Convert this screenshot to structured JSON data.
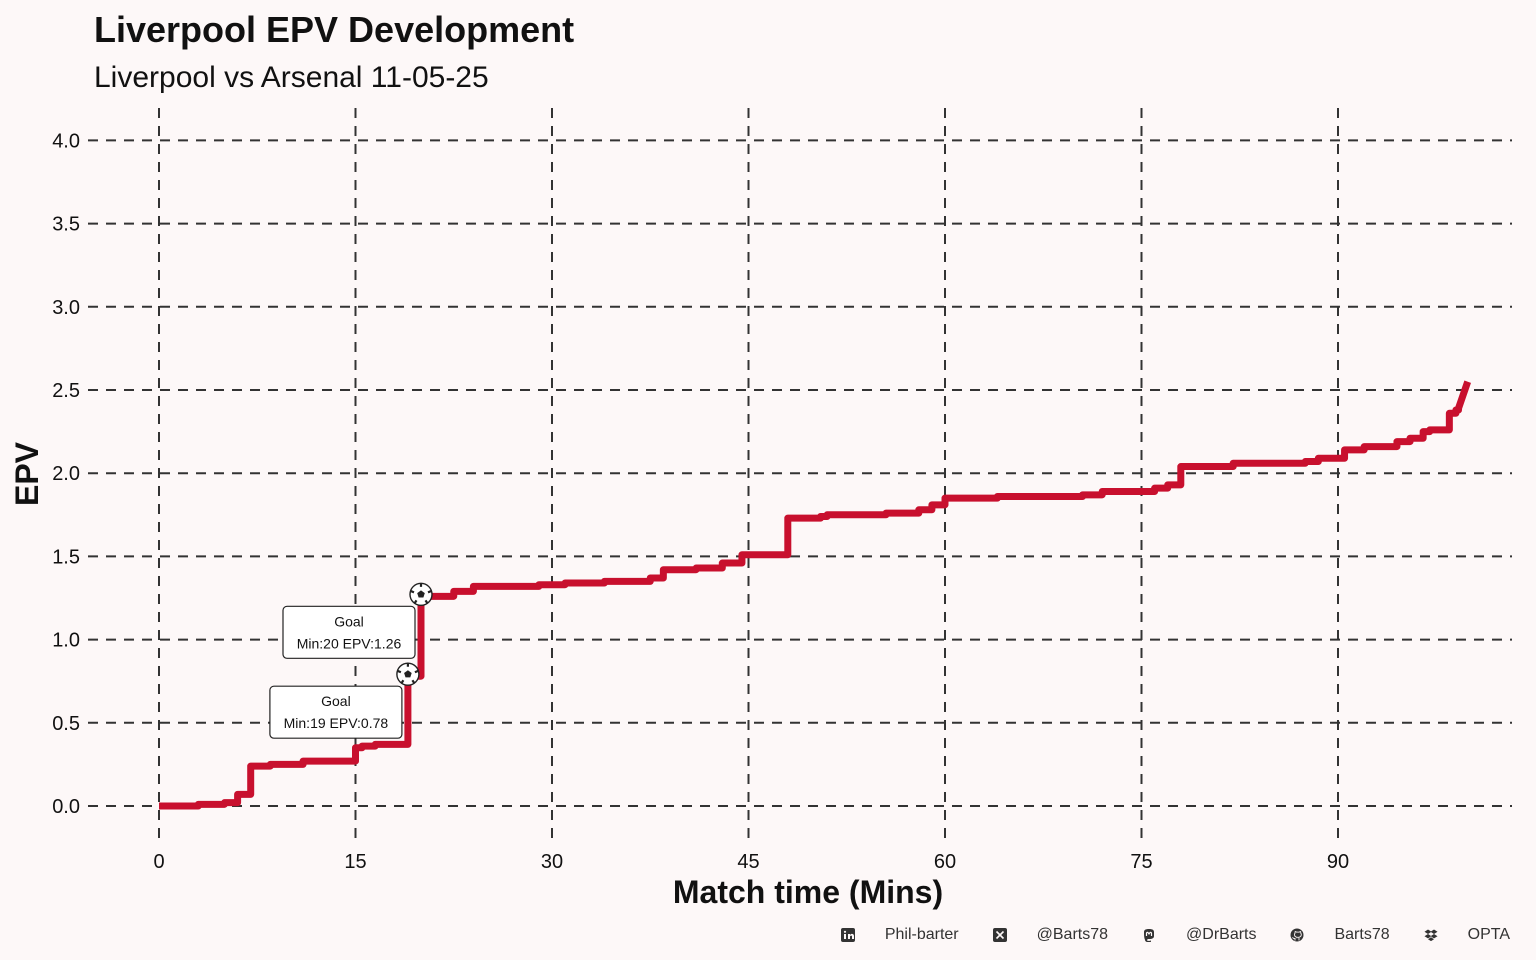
{
  "chart_data": {
    "type": "line",
    "title": "Liverpool  EPV Development",
    "subtitle": "Liverpool vs Arsenal 11-05-25",
    "xlabel": "Match time (Mins)",
    "ylabel": "EPV",
    "xlim": [
      0,
      100
    ],
    "ylim": [
      0,
      4.0
    ],
    "xticks": [
      0,
      15,
      30,
      45,
      60,
      75,
      90
    ],
    "yticks": [
      0.0,
      0.5,
      1.0,
      1.5,
      2.0,
      2.5,
      3.0,
      3.5,
      4.0
    ],
    "ytick_labels": [
      "0.0",
      "0.5",
      "1.0",
      "1.5",
      "2.0",
      "2.5",
      "3.0",
      "3.5",
      "4.0"
    ],
    "grid": true,
    "line_color": "#c8102e",
    "series": [
      {
        "name": "Liverpool",
        "step": true,
        "x": [
          0,
          3,
          5,
          6,
          7,
          8.5,
          11,
          15,
          15.5,
          16.5,
          18,
          19,
          20,
          22.5,
          24,
          29,
          31,
          34,
          37.5,
          38.5,
          41,
          43,
          44.5,
          47.5,
          48,
          50.5,
          51,
          55.5,
          58,
          59,
          59.5,
          60,
          64,
          70.5,
          72,
          76,
          77,
          78,
          82,
          86,
          87.5,
          88.5,
          90.5,
          92,
          94.5,
          95.5,
          96.5,
          97,
          98.5,
          99,
          99.2
        ],
        "y": [
          0.0,
          0.01,
          0.02,
          0.07,
          0.24,
          0.25,
          0.27,
          0.35,
          0.36,
          0.37,
          0.37,
          0.78,
          1.26,
          1.29,
          1.32,
          1.33,
          1.34,
          1.35,
          1.37,
          1.42,
          1.43,
          1.46,
          1.51,
          1.51,
          1.73,
          1.74,
          1.75,
          1.76,
          1.78,
          1.81,
          1.81,
          1.85,
          1.86,
          1.87,
          1.89,
          1.91,
          1.93,
          2.04,
          2.06,
          2.06,
          2.07,
          2.09,
          2.14,
          2.16,
          2.19,
          2.21,
          2.25,
          2.26,
          2.36,
          2.38,
          2.39
        ]
      }
    ],
    "final_segment": {
      "x": [
        99.2,
        99.9
      ],
      "y": [
        2.39,
        2.55
      ]
    },
    "annotations": [
      {
        "label": "Goal",
        "detail": "Min:20 EPV:1.26",
        "x": 20,
        "y": 1.26,
        "icon": "soccer-ball-icon"
      },
      {
        "label": "Goal",
        "detail": "Min:19 EPV:0.78",
        "x": 19,
        "y": 0.78,
        "icon": "soccer-ball-icon"
      }
    ]
  },
  "footer": {
    "items": [
      {
        "icon": "linkedin-icon",
        "text": "Phil-barter"
      },
      {
        "icon": "x-twitter-icon",
        "text": "@Barts78"
      },
      {
        "icon": "mastodon-icon",
        "text": "@DrBarts"
      },
      {
        "icon": "github-icon",
        "text": "Barts78"
      },
      {
        "icon": "dropbox-icon",
        "text": "OPTA"
      }
    ]
  }
}
